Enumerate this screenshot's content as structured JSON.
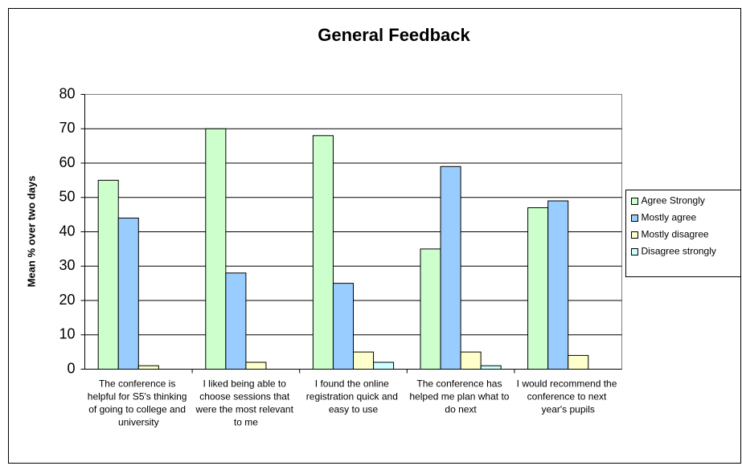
{
  "chart_data": {
    "type": "bar",
    "title": "General Feedback",
    "y_label": "Mean % over two days",
    "categories": [
      "The conference is helpful for S5's thinking of going to college and university",
      "I liked being able to choose sessions that were the most relevant to me",
      "I found the online registration quick and easy to use",
      "The conference has helped me plan what to do next",
      "I would recommend the conference to next year's pupils"
    ],
    "series": [
      {
        "name": "Agree Strongly",
        "color": "#ccffcc",
        "values": [
          55,
          70,
          68,
          35,
          47
        ]
      },
      {
        "name": "Mostly agree",
        "color": "#99ccff",
        "values": [
          44,
          28,
          25,
          59,
          49
        ]
      },
      {
        "name": "Mostly disagree",
        "color": "#ffffcc",
        "values": [
          1,
          2,
          5,
          5,
          4
        ]
      },
      {
        "name": "Disagree strongly",
        "color": "#ccffff",
        "values": [
          0,
          0,
          2,
          1,
          0
        ]
      }
    ],
    "ylim": [
      0,
      80
    ],
    "yticks": [
      0,
      10,
      20,
      30,
      40,
      50,
      60,
      70,
      80
    ],
    "grid": true,
    "legend": "right"
  }
}
